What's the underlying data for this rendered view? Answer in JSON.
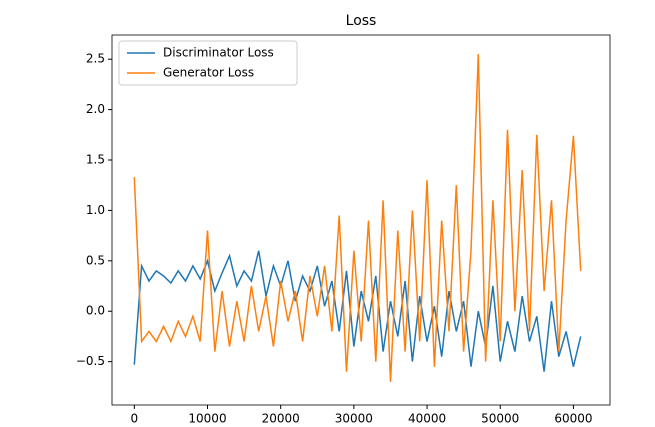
{
  "chart_data": {
    "type": "line",
    "title": "Loss",
    "x": [
      0,
      1000,
      2000,
      3000,
      4000,
      5000,
      6000,
      7000,
      8000,
      9000,
      10000,
      11000,
      12000,
      13000,
      14000,
      15000,
      16000,
      17000,
      18000,
      19000,
      20000,
      21000,
      22000,
      23000,
      24000,
      25000,
      26000,
      27000,
      28000,
      29000,
      30000,
      31000,
      32000,
      33000,
      34000,
      35000,
      36000,
      37000,
      38000,
      39000,
      40000,
      41000,
      42000,
      43000,
      44000,
      45000,
      46000,
      47000,
      48000,
      49000,
      50000,
      51000,
      52000,
      53000,
      54000,
      55000,
      56000,
      57000,
      58000,
      59000,
      60000,
      61000
    ],
    "series": [
      {
        "name": "Discriminator Loss",
        "color": "#1f77b4",
        "values": [
          -0.53,
          0.45,
          0.3,
          0.4,
          0.35,
          0.28,
          0.4,
          0.3,
          0.45,
          0.32,
          0.5,
          0.2,
          0.38,
          0.55,
          0.25,
          0.4,
          0.3,
          0.6,
          0.15,
          0.45,
          0.25,
          0.5,
          0.1,
          0.35,
          0.2,
          0.45,
          0.05,
          0.3,
          -0.2,
          0.4,
          -0.35,
          0.2,
          -0.1,
          0.35,
          -0.4,
          0.1,
          -0.25,
          0.3,
          -0.5,
          0.15,
          -0.3,
          0.05,
          -0.45,
          0.2,
          -0.2,
          0.1,
          -0.55,
          0.0,
          -0.35,
          0.25,
          -0.5,
          -0.1,
          -0.4,
          0.15,
          -0.3,
          -0.05,
          -0.6,
          0.1,
          -0.45,
          -0.2,
          -0.55,
          -0.25
        ]
      },
      {
        "name": "Generator Loss",
        "color": "#ff7f0e",
        "values": [
          1.33,
          -0.3,
          -0.2,
          -0.3,
          -0.15,
          -0.3,
          -0.1,
          -0.25,
          -0.05,
          -0.3,
          0.8,
          -0.4,
          0.2,
          -0.35,
          0.1,
          -0.3,
          0.25,
          -0.2,
          0.15,
          -0.35,
          0.3,
          -0.1,
          0.2,
          -0.3,
          0.35,
          -0.05,
          0.45,
          -0.2,
          0.95,
          -0.6,
          0.6,
          -0.3,
          0.9,
          -0.5,
          1.1,
          -0.7,
          0.8,
          -0.4,
          1.0,
          -0.3,
          1.3,
          -0.55,
          0.9,
          -0.2,
          1.25,
          -0.4,
          0.6,
          2.55,
          -0.5,
          1.1,
          -0.3,
          1.8,
          0.0,
          1.4,
          -0.2,
          1.75,
          0.2,
          1.1,
          -0.4,
          0.9,
          1.74,
          0.4
        ]
      }
    ],
    "xlim": [
      -3050,
      65000
    ],
    "ylim": [
      -0.93,
      2.74
    ],
    "xticks": [
      0,
      10000,
      20000,
      30000,
      40000,
      50000,
      60000
    ],
    "yticks": [
      {
        "value": -0.5,
        "label": "−0.5"
      },
      {
        "value": 0,
        "label": "0.0"
      },
      0.5,
      {
        "value": 1,
        "label": "1.0"
      },
      1.5,
      {
        "value": 2,
        "label": "2.0"
      },
      2.5
    ],
    "legend": "upper left"
  }
}
